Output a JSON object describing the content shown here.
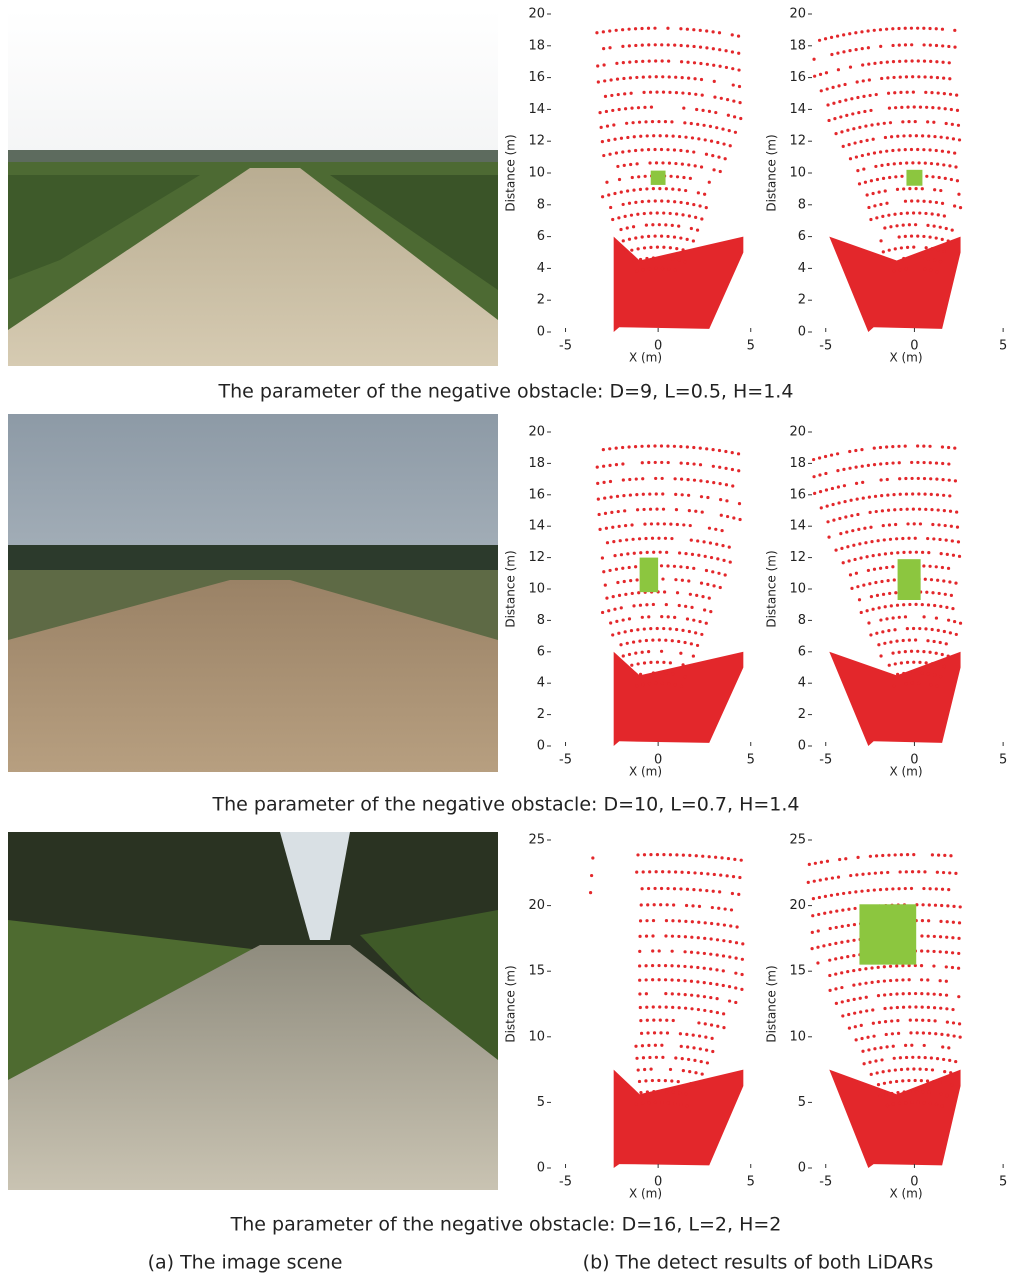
{
  "rows": [
    {
      "caption": "The parameter of the negative obstacle:  D=9, L=0.5, H=1.4",
      "plots": [
        {
          "y_label": "Distance (m)",
          "x_label": "X (m)",
          "xlim": [
            -6,
            5.5
          ],
          "ylim": [
            0,
            20
          ],
          "xticks": [
            -5,
            0,
            5
          ],
          "yticks": [
            0,
            2,
            4,
            6,
            8,
            10,
            12,
            14,
            16,
            18,
            20
          ]
        },
        {
          "y_label": "Distance (m)",
          "x_label": "X (m)",
          "xlim": [
            -6,
            5.5
          ],
          "ylim": [
            0,
            20
          ],
          "xticks": [
            -5,
            0,
            5
          ],
          "yticks": [
            0,
            2,
            4,
            6,
            8,
            10,
            12,
            14,
            16,
            18,
            20
          ]
        }
      ]
    },
    {
      "caption": "The parameter of the negative obstacle: D=10, L=0.7, H=1.4",
      "plots": [
        {
          "y_label": "Distance (m)",
          "x_label": "X (m)",
          "xlim": [
            -6,
            5.5
          ],
          "ylim": [
            0,
            20
          ],
          "xticks": [
            -5,
            0,
            5
          ],
          "yticks": [
            0,
            2,
            4,
            6,
            8,
            10,
            12,
            14,
            16,
            18,
            20
          ]
        },
        {
          "y_label": "Distance (m)",
          "x_label": "X (m)",
          "xlim": [
            -6,
            5.5
          ],
          "ylim": [
            0,
            20
          ],
          "xticks": [
            -5,
            0,
            5
          ],
          "yticks": [
            0,
            2,
            4,
            6,
            8,
            10,
            12,
            14,
            16,
            18,
            20
          ]
        }
      ]
    },
    {
      "caption": "The parameter of the negative obstacle: D=16, L=2, H=2",
      "plots": [
        {
          "y_label": "Distance (m)",
          "x_label": "X (m)",
          "xlim": [
            -6,
            5.5
          ],
          "ylim": [
            0,
            25
          ],
          "xticks": [
            -5,
            0,
            5
          ],
          "yticks": [
            0,
            5,
            10,
            15,
            20,
            25
          ]
        },
        {
          "y_label": "Distance (m)",
          "x_label": "X (m)",
          "xlim": [
            -6,
            5.5
          ],
          "ylim": [
            0,
            25
          ],
          "xticks": [
            -5,
            0,
            5
          ],
          "yticks": [
            0,
            5,
            10,
            15,
            20,
            25
          ]
        }
      ]
    }
  ],
  "footer": {
    "left": "(a) The image scene",
    "right": "(b) The detect results of both LiDARs"
  }
}
